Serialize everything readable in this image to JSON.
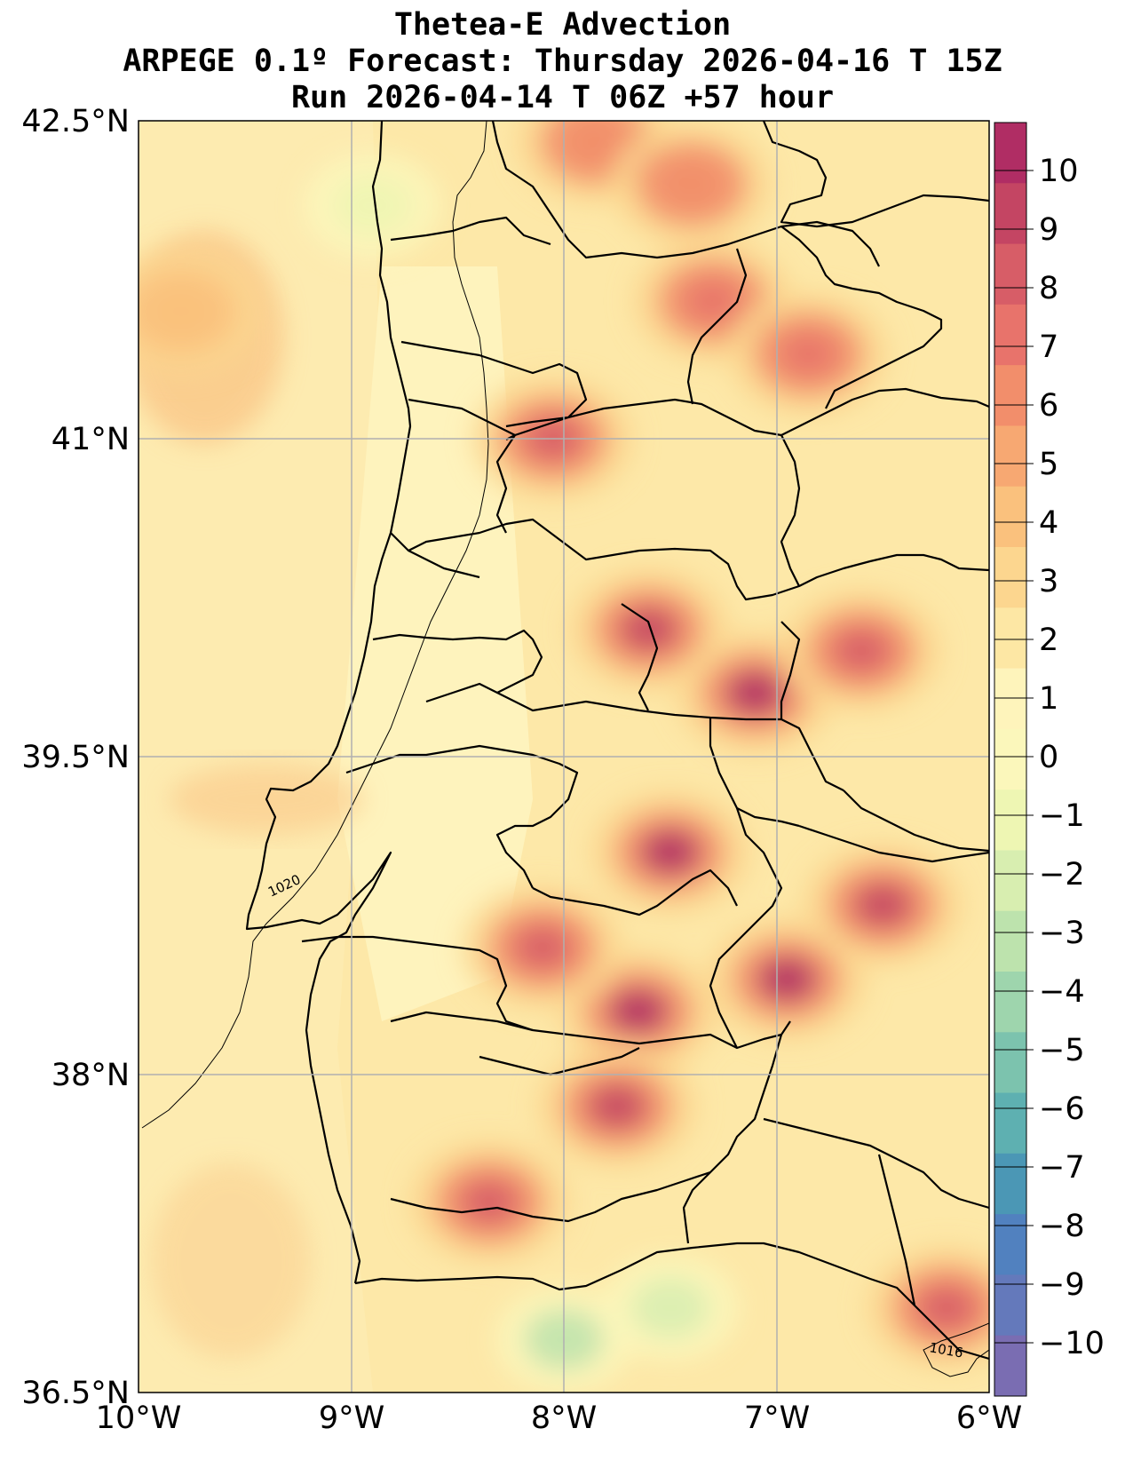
{
  "title": {
    "line1": "Thetea-E Advection",
    "line2": "ARPEGE 0.1º Forecast: Thursday 2026-04-16 T 15Z",
    "line3": "Run 2026-04-14 T 06Z +57 hour"
  },
  "map": {
    "lat_ticks": [
      "42.5°N",
      "41°N",
      "39.5°N",
      "38°N",
      "36.5°N"
    ],
    "lon_ticks": [
      "10°W",
      "9°W",
      "8°W",
      "7°W",
      "6°W"
    ],
    "isobar_labels": [
      "1020",
      "1016"
    ],
    "field_hotspots": [
      {
        "lon": -7.1,
        "lat": 39.8,
        "value": 10
      },
      {
        "lon": -7.5,
        "lat": 39.05,
        "value": 10
      },
      {
        "lon": -7.65,
        "lat": 38.3,
        "value": 10
      },
      {
        "lon": -6.95,
        "lat": 38.45,
        "value": 10
      },
      {
        "lon": -7.75,
        "lat": 37.85,
        "value": 9
      },
      {
        "lon": -8.35,
        "lat": 37.4,
        "value": 8
      },
      {
        "lon": -7.6,
        "lat": 40.1,
        "value": 9
      },
      {
        "lon": -6.6,
        "lat": 40.0,
        "value": 8
      },
      {
        "lon": -6.5,
        "lat": 38.8,
        "value": 9
      },
      {
        "lon": -8.05,
        "lat": 41.0,
        "value": 8
      },
      {
        "lon": -7.3,
        "lat": 41.65,
        "value": 7
      },
      {
        "lon": -6.85,
        "lat": 41.4,
        "value": 7
      },
      {
        "lon": -8.1,
        "lat": 38.6,
        "value": 8
      },
      {
        "lon": -6.2,
        "lat": 36.9,
        "value": 8
      },
      {
        "lon": -7.85,
        "lat": 42.4,
        "value": 6
      },
      {
        "lon": -7.4,
        "lat": 42.2,
        "value": 6
      },
      {
        "lon": -9.8,
        "lat": 41.6,
        "value": 4
      },
      {
        "lon": -8.0,
        "lat": 36.75,
        "value": -3
      },
      {
        "lon": -7.5,
        "lat": 36.9,
        "value": -2
      },
      {
        "lon": -8.9,
        "lat": 42.1,
        "value": -1
      }
    ]
  },
  "colorbar": {
    "ticks": [
      "10",
      "9",
      "8",
      "7",
      "6",
      "5",
      "4",
      "3",
      "2",
      "1",
      "0",
      "−1",
      "−2",
      "−3",
      "−4",
      "−5",
      "−6",
      "−7",
      "−8",
      "−9",
      "−10"
    ],
    "colors": [
      "#b02d64",
      "#c44563",
      "#d75d67",
      "#e8736b",
      "#f28e6b",
      "#f7a872",
      "#fac17d",
      "#fcd68f",
      "#fde7a4",
      "#fef4bb",
      "#fbf7bb",
      "#eef6b3",
      "#d8eeb0",
      "#bde3ad",
      "#9ed5ad",
      "#7cc3ae",
      "#5eb0b1",
      "#4b97b5",
      "#5181bf",
      "#6479bb",
      "#7a6db2"
    ]
  }
}
